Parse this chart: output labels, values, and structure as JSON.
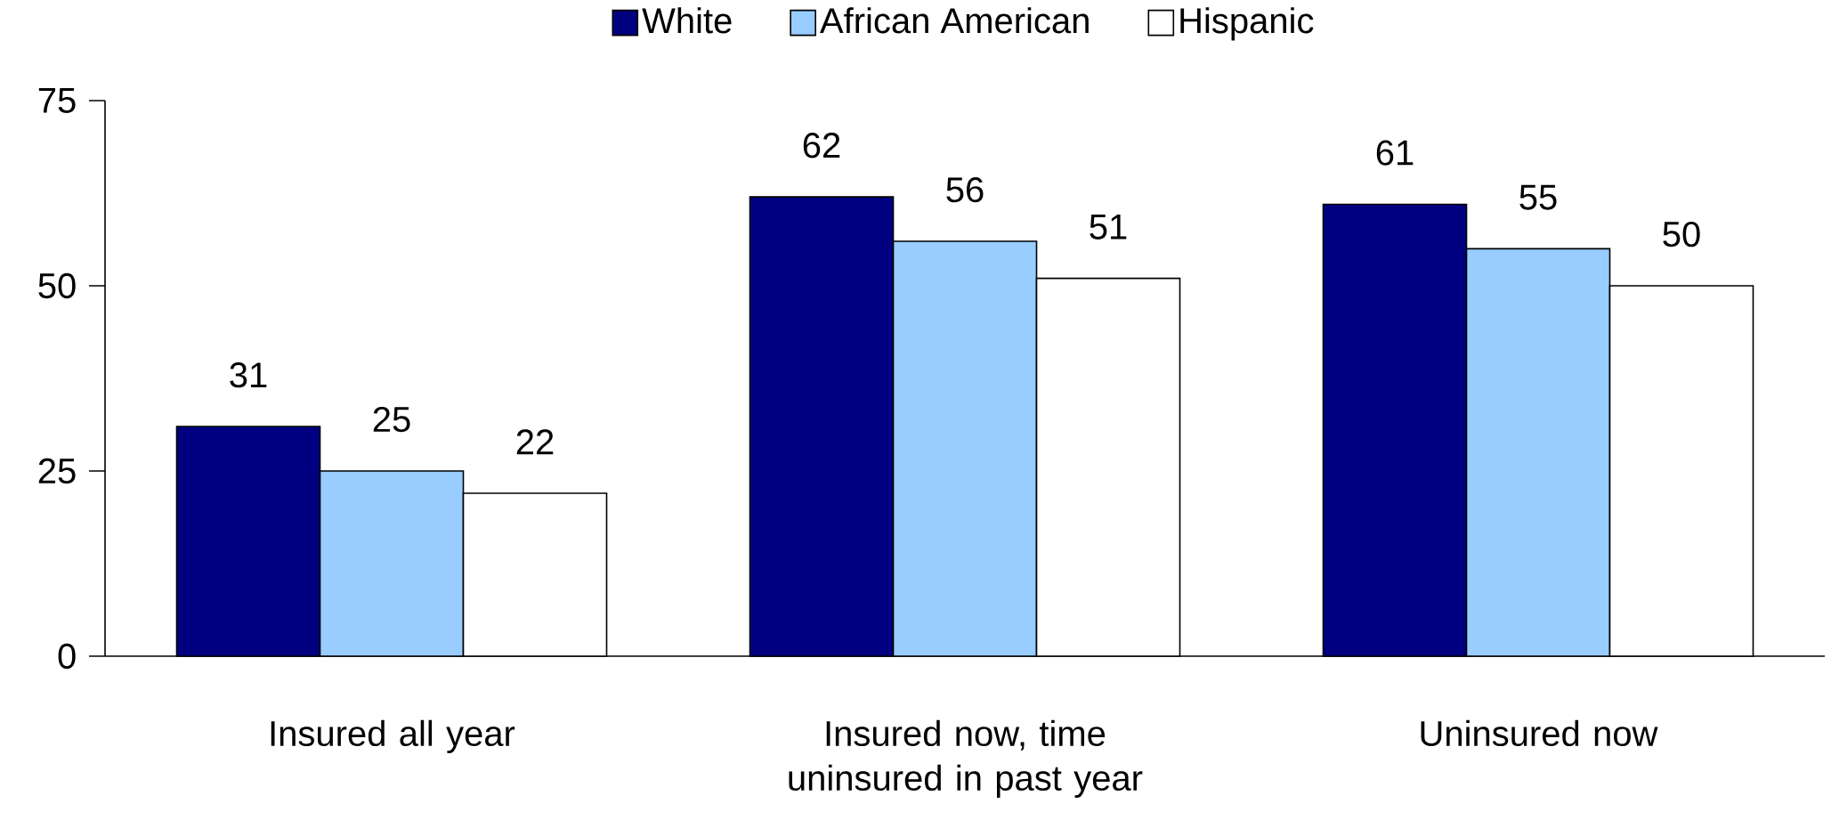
{
  "chart_data": {
    "type": "bar",
    "categories": [
      "Insured all year",
      "Insured now, time uninsured in past year",
      "Uninsured now"
    ],
    "series": [
      {
        "name": "White",
        "color": "#000080",
        "values": [
          31,
          62,
          61
        ]
      },
      {
        "name": "African American",
        "color": "#99ccff",
        "values": [
          25,
          56,
          55
        ]
      },
      {
        "name": "Hispanic",
        "color": "#ffffff",
        "values": [
          22,
          51,
          50
        ]
      }
    ],
    "ylim": [
      0,
      75
    ],
    "yticks": [
      0,
      25,
      50,
      75
    ],
    "data_labels": true,
    "grid": false,
    "legend": "top"
  }
}
